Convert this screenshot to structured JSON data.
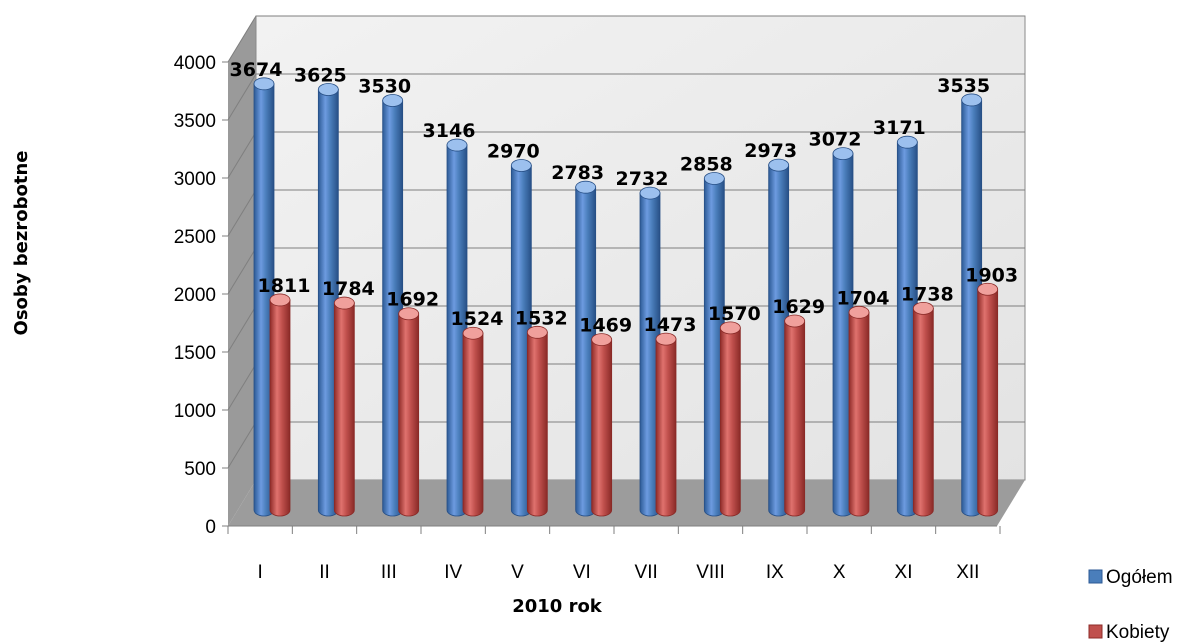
{
  "chart_data": {
    "type": "bar",
    "style": "3d-cylinder",
    "categories": [
      "I",
      "II",
      "III",
      "IV",
      "V",
      "VI",
      "VII",
      "VIII",
      "IX",
      "X",
      "XI",
      "XII"
    ],
    "series": [
      {
        "name": "Ogółem",
        "color": "#4a7ebb",
        "values": [
          3674,
          3625,
          3530,
          3146,
          2970,
          2783,
          2732,
          2858,
          2973,
          3072,
          3171,
          3535
        ]
      },
      {
        "name": "Kobiety",
        "color": "#c0504d",
        "values": [
          1811,
          1784,
          1692,
          1524,
          1532,
          1469,
          1473,
          1570,
          1629,
          1704,
          1738,
          1903
        ]
      }
    ],
    "title": "",
    "xlabel": "2010 rok",
    "ylabel": "Osoby bezrobotne",
    "ylim": [
      0,
      4000
    ],
    "yticks": [
      "0",
      "500",
      "1000",
      "1500",
      "2000",
      "2500",
      "3000",
      "3500",
      "4000"
    ],
    "grid": true,
    "legend": "right"
  }
}
